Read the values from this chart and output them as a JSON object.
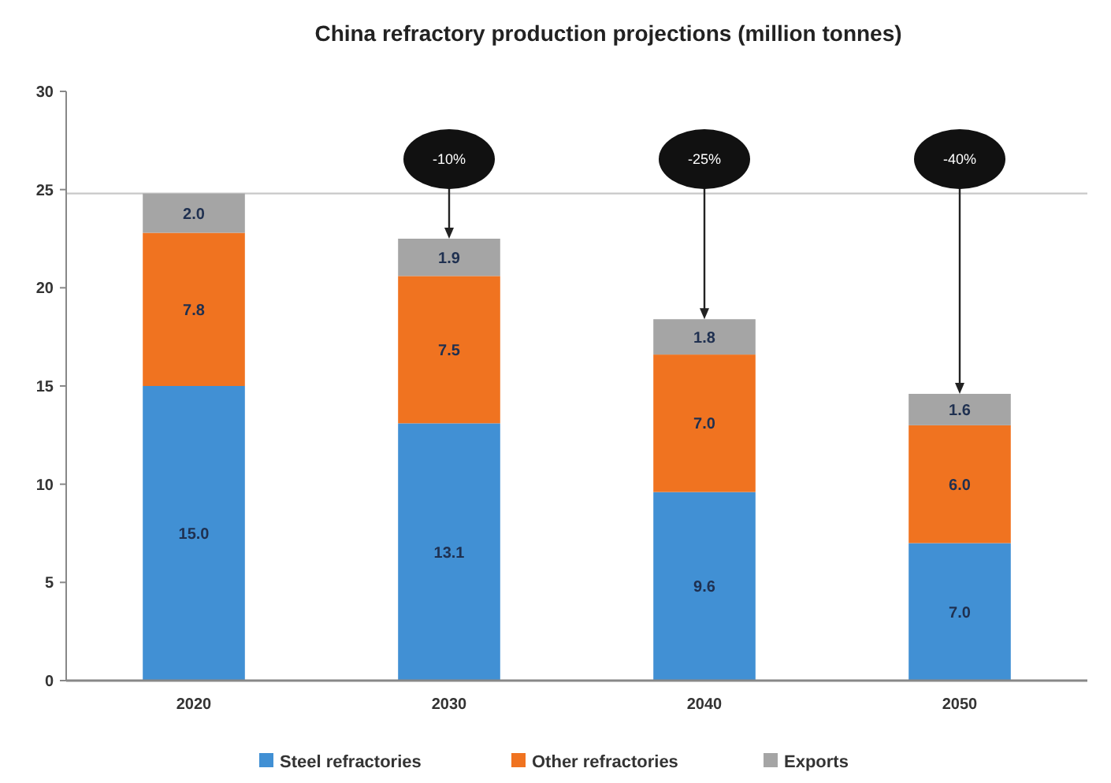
{
  "chart_data": {
    "type": "bar",
    "title": "China refractory production projections (million tonnes)",
    "categories": [
      "2020",
      "2030",
      "2040",
      "2050"
    ],
    "stacked": true,
    "series": [
      {
        "name": "Steel refractories",
        "color": "#4190d4",
        "values": [
          15.0,
          13.1,
          9.6,
          7.0
        ],
        "value_labels": [
          "15.0",
          "13.1",
          "9.6",
          "7.0"
        ]
      },
      {
        "name": "Other refractories",
        "color": "#f07320",
        "values": [
          7.8,
          7.5,
          7.0,
          6.0
        ],
        "value_labels": [
          "7.8",
          "7.5",
          "7.0",
          "6.0"
        ]
      },
      {
        "name": "Exports",
        "color": "#a5a5a5",
        "values": [
          2.0,
          1.9,
          1.8,
          1.6
        ],
        "value_labels": [
          "2.0",
          "1.9",
          "1.8",
          "1.6"
        ]
      }
    ],
    "ylim": [
      0,
      30
    ],
    "yticks": [
      0,
      5,
      10,
      15,
      20,
      25,
      30
    ],
    "grid": false,
    "legend": "bottom",
    "ref_lines": [
      {
        "axis": "y",
        "value": 24.8,
        "color": "#c8c8c8"
      }
    ],
    "annotations": [
      "-10%",
      "-25%",
      "-40%"
    ]
  }
}
